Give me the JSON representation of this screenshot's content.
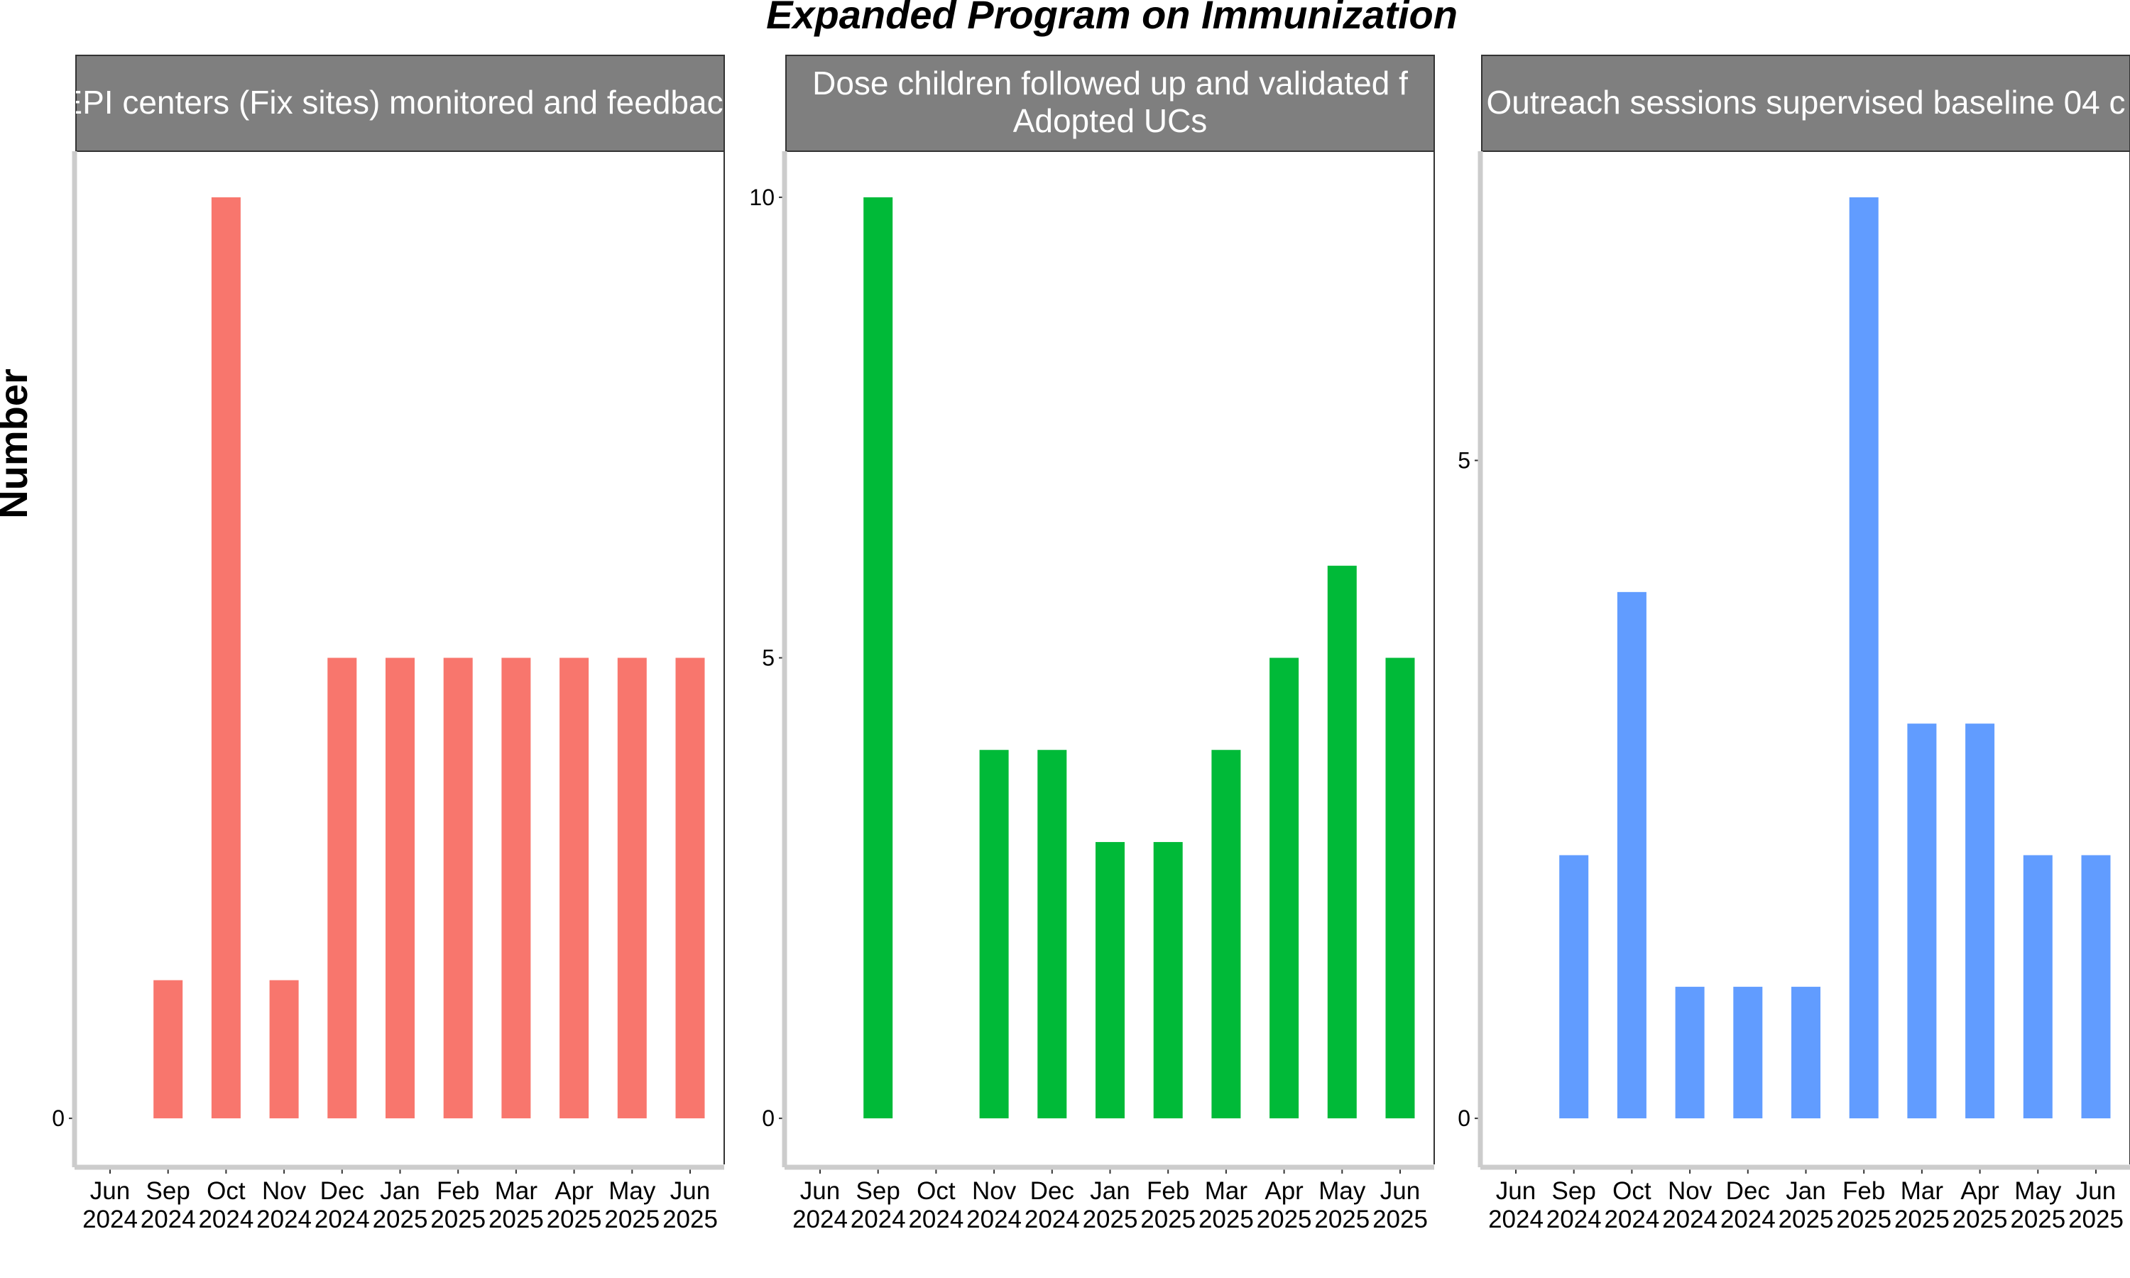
{
  "title": "Expanded Program on Immunization",
  "y_axis_label": "Number",
  "colors": {
    "panel_1": "#F8766D",
    "panel_2": "#00BA38",
    "panel_3": "#619CFF",
    "strip": "#7F7F7F",
    "axis": "#CCCCCC"
  },
  "chart_data": [
    {
      "type": "bar",
      "facet_label": "EPI centers (Fix sites) monitored and feedback",
      "categories": [
        "Jun 2024",
        "Sep 2024",
        "Oct 2024",
        "Nov 2024",
        "Dec 2024",
        "Jan 2025",
        "Feb 2025",
        "Mar 2025",
        "Apr 2025",
        "May 2025",
        "Jun 2025"
      ],
      "values": [
        0,
        1.5,
        10,
        1.5,
        5,
        5,
        5,
        5,
        5,
        5,
        5
      ],
      "ylim": [
        -0.5,
        10.5
      ],
      "y_ticks": [
        0
      ]
    },
    {
      "type": "bar",
      "facet_label": "Dose children followed up and validated f Adopted UCs",
      "categories": [
        "Jun 2024",
        "Sep 2024",
        "Oct 2024",
        "Nov 2024",
        "Dec 2024",
        "Jan 2025",
        "Feb 2025",
        "Mar 2025",
        "Apr 2025",
        "May 2025",
        "Jun 2025"
      ],
      "values": [
        0,
        10,
        0,
        4,
        4,
        3,
        3,
        4,
        5,
        6,
        5
      ],
      "ylim": [
        -0.5,
        10.5
      ],
      "y_ticks": [
        0,
        5,
        10
      ]
    },
    {
      "type": "bar",
      "facet_label": "Outreach sessions supervised baseline 04 c",
      "categories": [
        "Jun 2024",
        "Sep 2024",
        "Oct 2024",
        "Nov 2024",
        "Dec 2024",
        "Jan 2025",
        "Feb 2025",
        "Mar 2025",
        "Apr 2025",
        "May 2025",
        "Jun 2025"
      ],
      "values": [
        0,
        2,
        4,
        1,
        1,
        1,
        7,
        3,
        3,
        2,
        2
      ],
      "ylim": [
        -0.35,
        7.35
      ],
      "y_ticks": [
        0,
        5
      ]
    }
  ]
}
